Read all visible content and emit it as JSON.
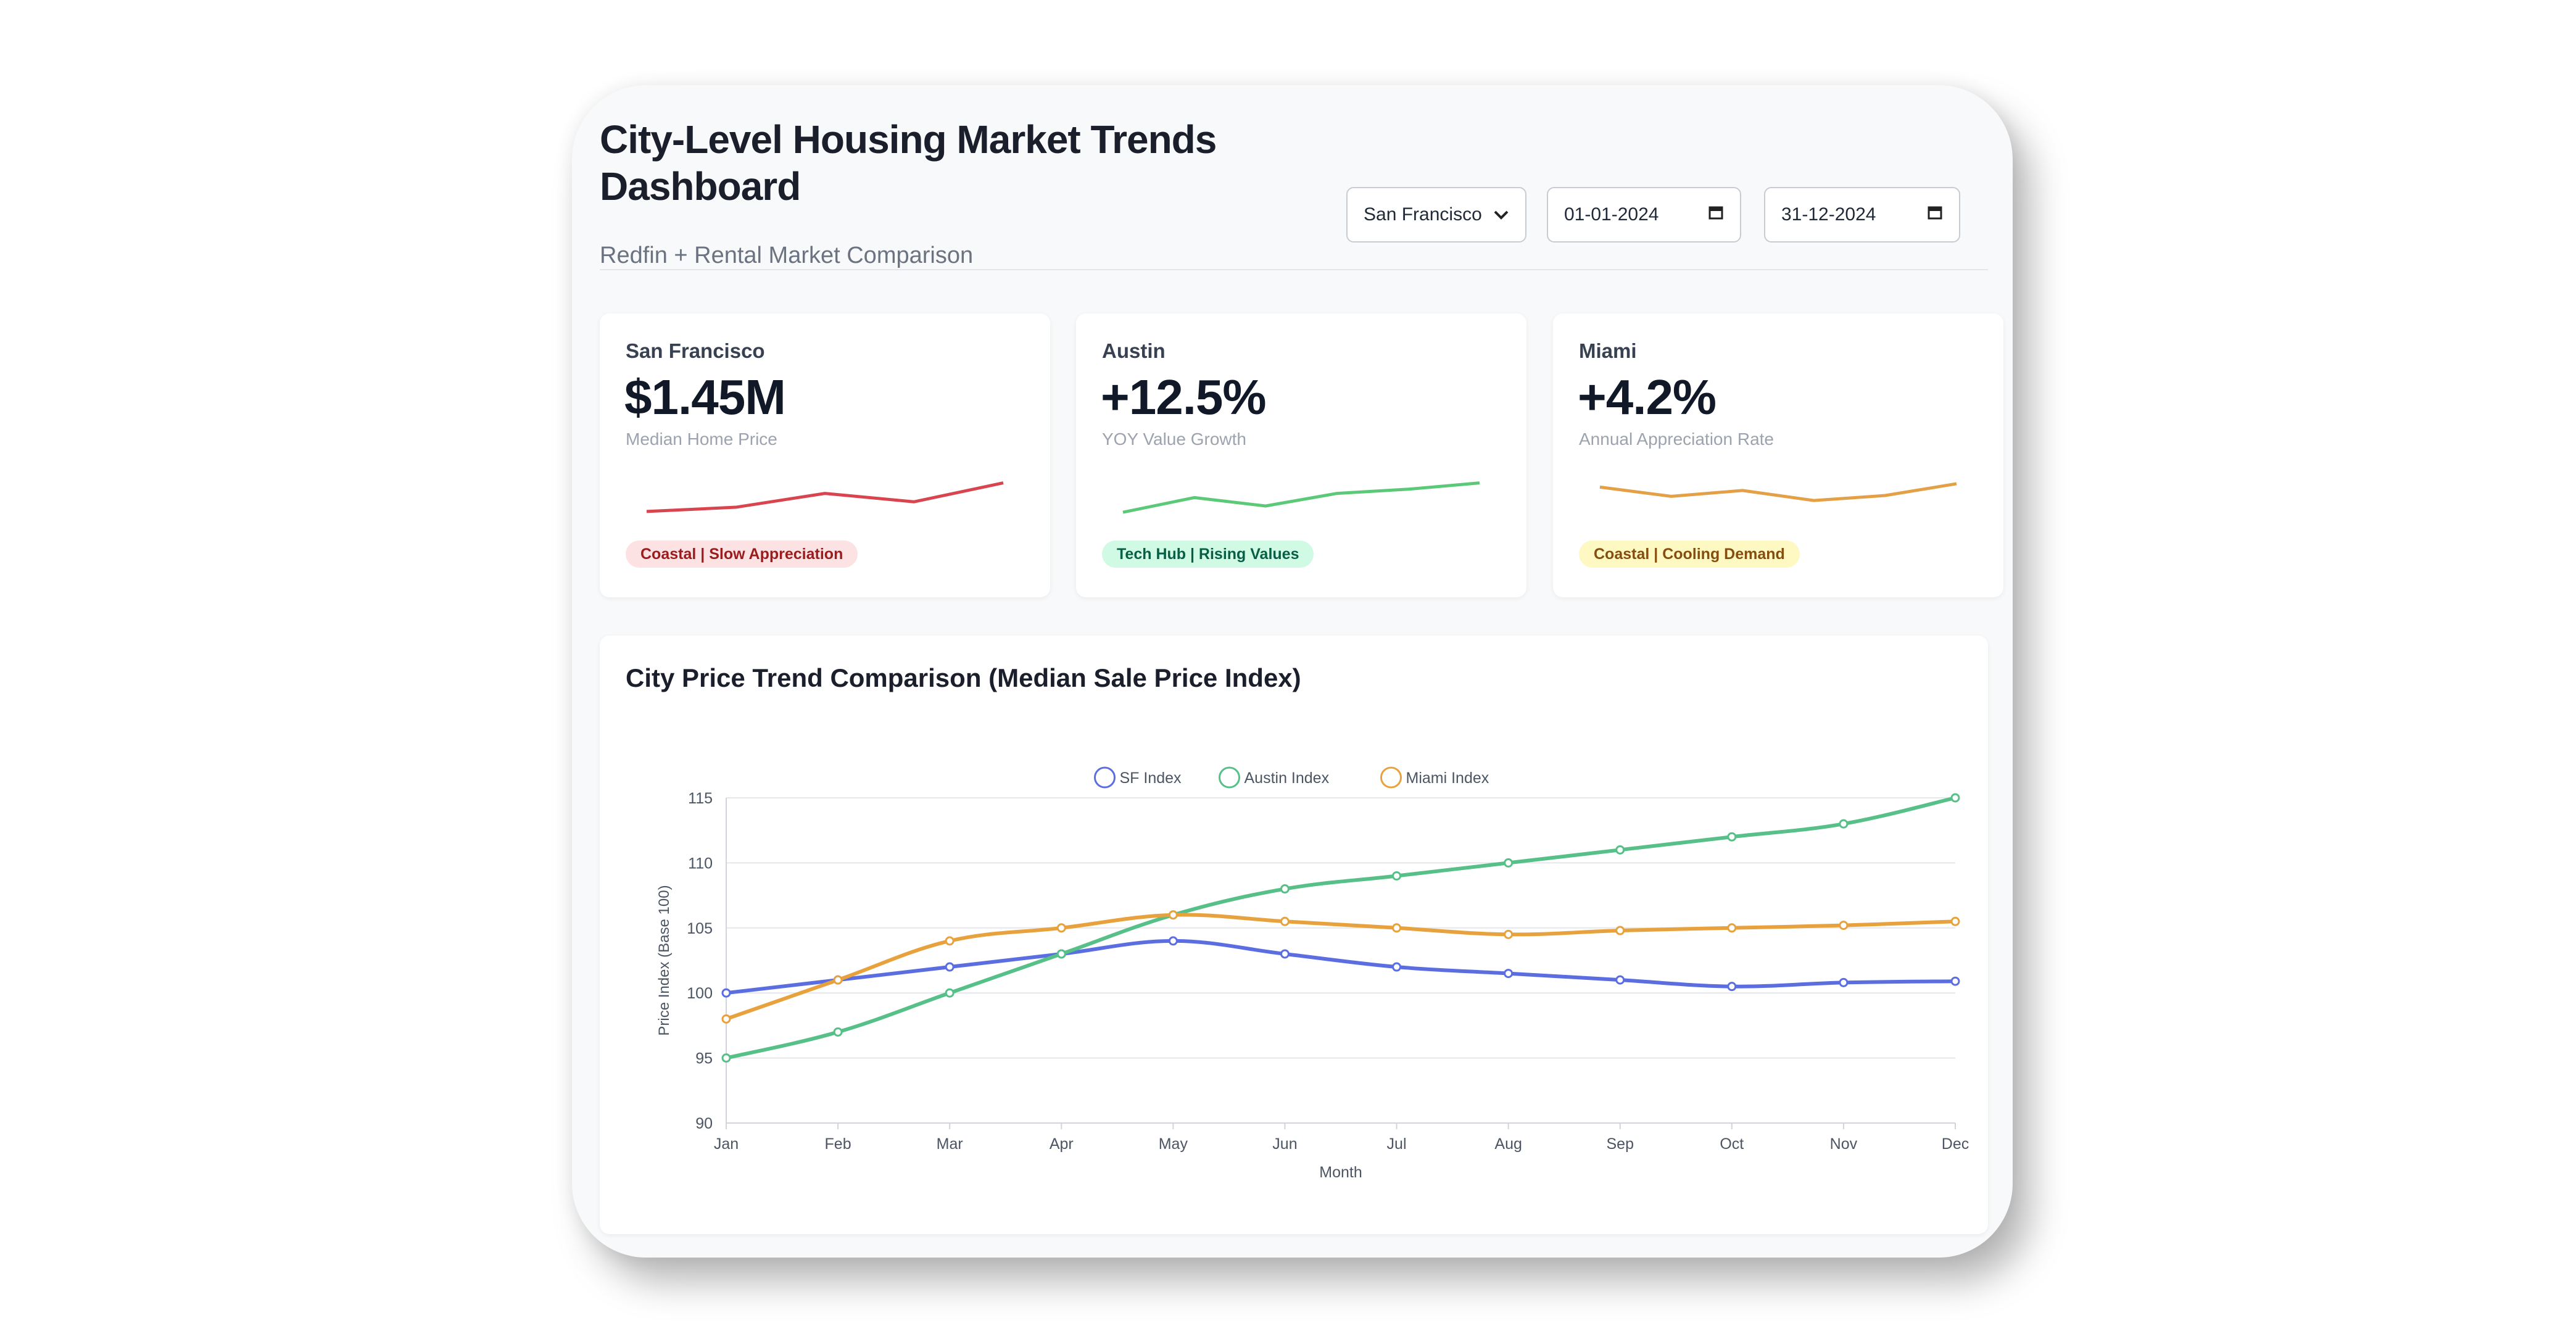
{
  "header": {
    "title": "City-Level Housing Market Trends Dashboard",
    "subtitle": "Redfin + Rental Market Comparison",
    "city_select": {
      "value": "San Francisco"
    },
    "start_date": "01-01-2024",
    "end_date": "31-12-2024"
  },
  "cards": [
    {
      "city": "San Francisco",
      "metric": "$1.45M",
      "metric_label": "Median Home Price",
      "badge": "Coastal | Slow Appreciation",
      "color": "#d9454f",
      "sparkline": [
        0.12,
        0.22,
        0.55,
        0.35,
        0.8
      ]
    },
    {
      "city": "Austin",
      "metric": "+12.5%",
      "metric_label": "YOY Value Growth",
      "badge": "Tech Hub | Rising Values",
      "color": "#5cc979",
      "sparkline": [
        0.1,
        0.45,
        0.25,
        0.55,
        0.65,
        0.8
      ]
    },
    {
      "city": "Miami",
      "metric": "+4.2%",
      "metric_label": "Annual Appreciation Rate",
      "badge": "Coastal | Cooling Demand",
      "color": "#e3a046",
      "sparkline": [
        0.7,
        0.48,
        0.62,
        0.38,
        0.5,
        0.78
      ]
    }
  ],
  "chart_data": {
    "type": "line",
    "title": "City Price Trend Comparison (Median Sale Price Index)",
    "xlabel": "Month",
    "ylabel": "Price Index (Base 100)",
    "categories": [
      "Jan",
      "Feb",
      "Mar",
      "Apr",
      "May",
      "Jun",
      "Jul",
      "Aug",
      "Sep",
      "Oct",
      "Nov",
      "Dec"
    ],
    "ylim": [
      90,
      115
    ],
    "yticks": [
      90,
      95,
      100,
      105,
      110,
      115
    ],
    "grid": true,
    "legend": "top-center",
    "series": [
      {
        "name": "SF Index",
        "color": "#5b6ee1",
        "values": [
          100,
          101,
          102,
          103,
          104,
          103,
          102,
          101.5,
          101,
          100.5,
          100.8,
          100.9
        ]
      },
      {
        "name": "Austin Index",
        "color": "#56c088",
        "values": [
          95,
          97,
          100,
          103,
          106,
          108,
          109,
          110,
          111,
          112,
          113,
          115
        ]
      },
      {
        "name": "Miami Index",
        "color": "#e8a23d",
        "values": [
          98,
          101,
          104,
          105,
          106,
          105.5,
          105,
          104.5,
          104.8,
          105,
          105.2,
          105.5
        ]
      }
    ]
  }
}
